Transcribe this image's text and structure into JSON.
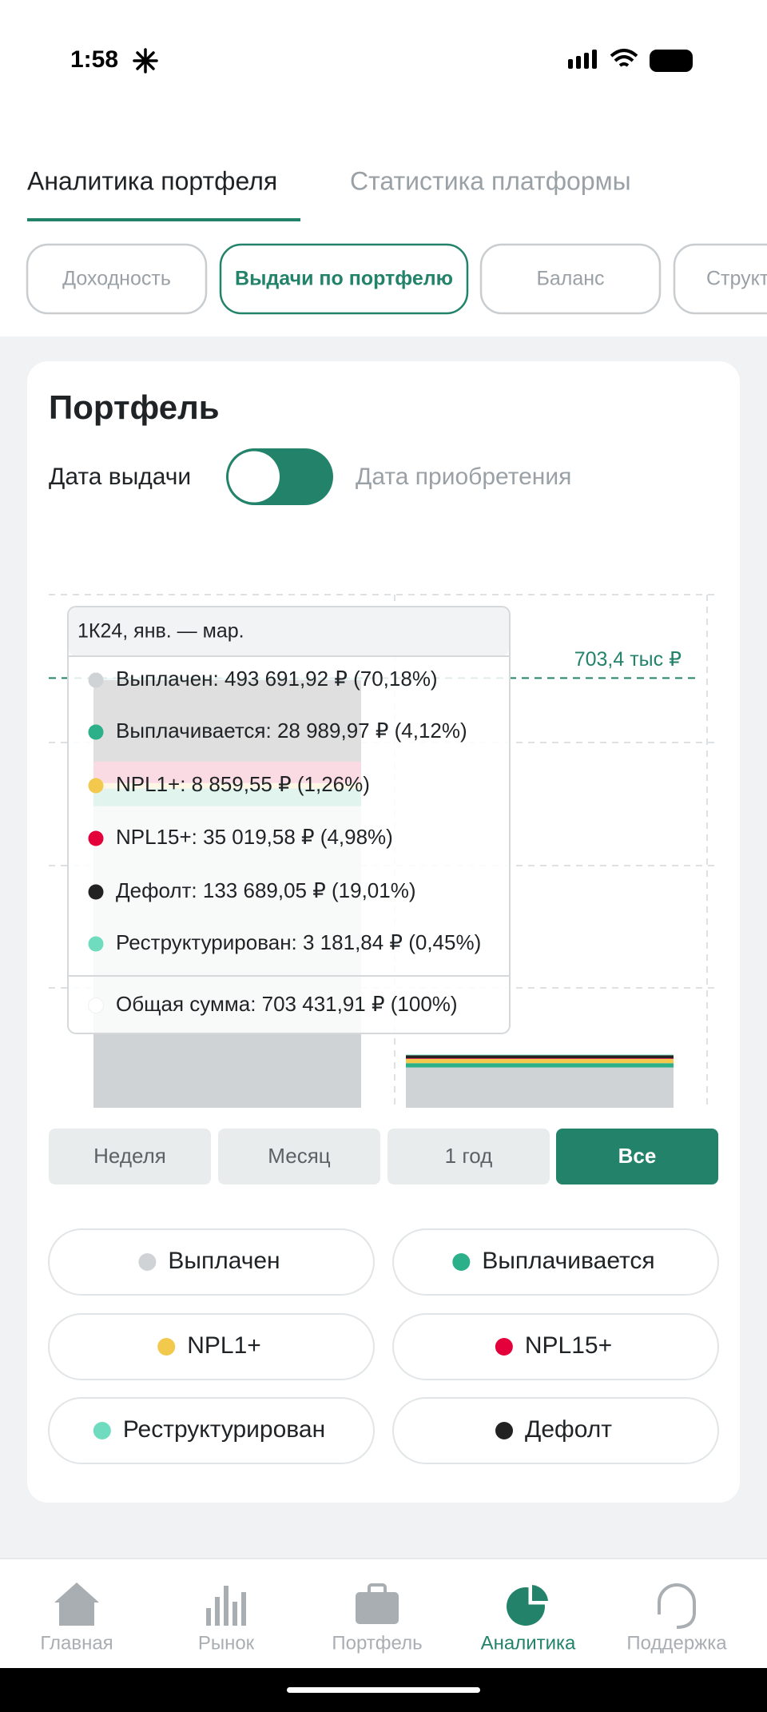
{
  "status_bar": {
    "time": "1:58"
  },
  "tabs": [
    "Аналитика портфеля",
    "Статистика платформы"
  ],
  "chips": [
    "Доходность",
    "Выдачи по портфелю",
    "Баланс",
    "Структура"
  ],
  "card": {
    "title": "Портфель",
    "toggle_left": "Дата выдачи",
    "toggle_right": "Дата приобретения"
  },
  "chart_data": {
    "type": "bar",
    "stacked": true,
    "ylim": [
      0,
      840
    ],
    "series": [
      {
        "color": "#cfd3d6",
        "values": [
          493.69,
          66
        ]
      },
      {
        "color": "#2bb08a",
        "values": [
          28.99,
          7
        ]
      },
      {
        "color": "#f2c94c",
        "values": [
          8.86,
          7
        ]
      },
      {
        "color": "#e4003a",
        "values": [
          35.02,
          1
        ]
      },
      {
        "color": "#222222",
        "values": [
          133.69,
          5
        ]
      },
      {
        "color": "#6fdcc0",
        "values": [
          3.18,
          1
        ]
      }
    ],
    "reference_line": {
      "value": 703.4,
      "label": "703,4 тыс ₽",
      "color": "#23836a"
    }
  },
  "tooltip": {
    "header": "1К24, янв. — мар.",
    "rows": [
      {
        "text": "Выплачен: 493 691,92 ₽ (70,18%)",
        "color": "#cfd3d6"
      },
      {
        "text": "Выплачивается: 28 989,97 ₽ (4,12%)",
        "color": "#2bb08a"
      },
      {
        "text": "NPL1+: 8 859,55 ₽ (1,26%)",
        "color": "#f2c94c"
      },
      {
        "text": "NPL15+: 35 019,58 ₽ (4,98%)",
        "color": "#e4003a"
      },
      {
        "text": "Дефолт: 133 689,05 ₽ (19,01%)",
        "color": "#222222"
      },
      {
        "text": "Реструктурирован: 3 181,84 ₽ (0,45%)",
        "color": "#6fdcc0"
      }
    ],
    "total": "Общая сумма: 703 431,91 ₽ (100%)"
  },
  "periods": [
    "Неделя",
    "Месяц",
    "1 год",
    "Все"
  ],
  "legend": [
    {
      "name": "Выплачен",
      "color": "#cfd3d6"
    },
    {
      "name": "Выплачивается",
      "color": "#2bb08a"
    },
    {
      "name": "NPL1+",
      "color": "#f2c94c"
    },
    {
      "name": "NPL15+",
      "color": "#e4003a"
    },
    {
      "name": "Реструктурирован",
      "color": "#6fdcc0"
    },
    {
      "name": "Дефолт",
      "color": "#222222"
    }
  ],
  "nav": [
    "Главная",
    "Рынок",
    "Портфель",
    "Аналитика",
    "Поддержка"
  ]
}
